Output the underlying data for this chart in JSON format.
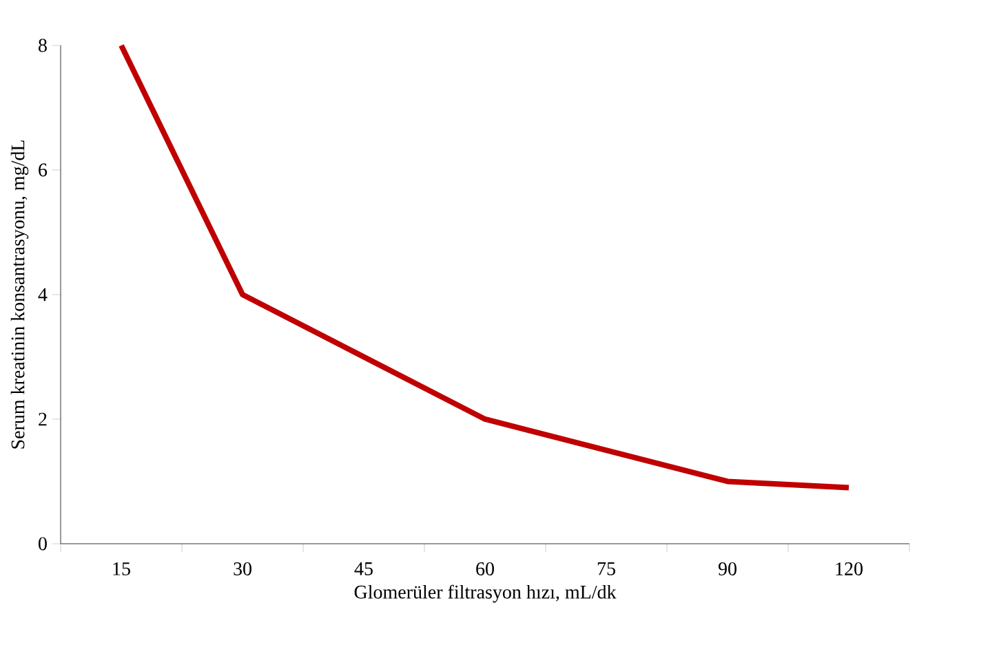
{
  "chart_data": {
    "type": "line",
    "xlabel": "Glomerüler filtrasyon hızı, mL/dk",
    "ylabel": "Serum kreatinin konsantrasyonu, mg/dL",
    "categories": [
      "15",
      "30",
      "45",
      "60",
      "75",
      "90",
      "120"
    ],
    "values": [
      8,
      4,
      null,
      2,
      null,
      1,
      0.9
    ],
    "color": "#c00000",
    "ylim": [
      0,
      8
    ],
    "yticks": [
      0,
      2,
      4,
      6,
      8
    ],
    "marker": "none",
    "line_style": "solid"
  }
}
